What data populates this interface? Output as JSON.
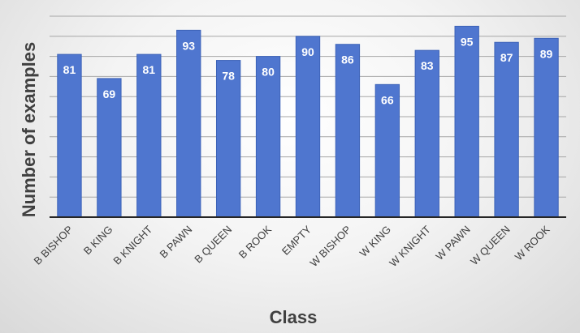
{
  "chart_data": {
    "type": "bar",
    "categories": [
      "B BISHOP",
      "B KING",
      "B KNIGHT",
      "B PAWN",
      "B QUEEN",
      "B ROOK",
      "EMPTY",
      "W BISHOP",
      "W KING",
      "W KNIGHT",
      "W PAWN",
      "W QUEEN",
      "W ROOK"
    ],
    "values": [
      81,
      69,
      81,
      93,
      78,
      80,
      90,
      86,
      66,
      83,
      95,
      87,
      89
    ],
    "xlabel": "Class",
    "ylabel": "Number of examples",
    "ylim": [
      0,
      100
    ],
    "grid": true,
    "legend": "none",
    "bar_color": "#4f76cf",
    "bar_edge_color": "#3d63b8",
    "gridline_color": "#a6a6a6",
    "axis_color": "#262626",
    "label_color": "#404040",
    "data_label_color": "#ffffff"
  }
}
